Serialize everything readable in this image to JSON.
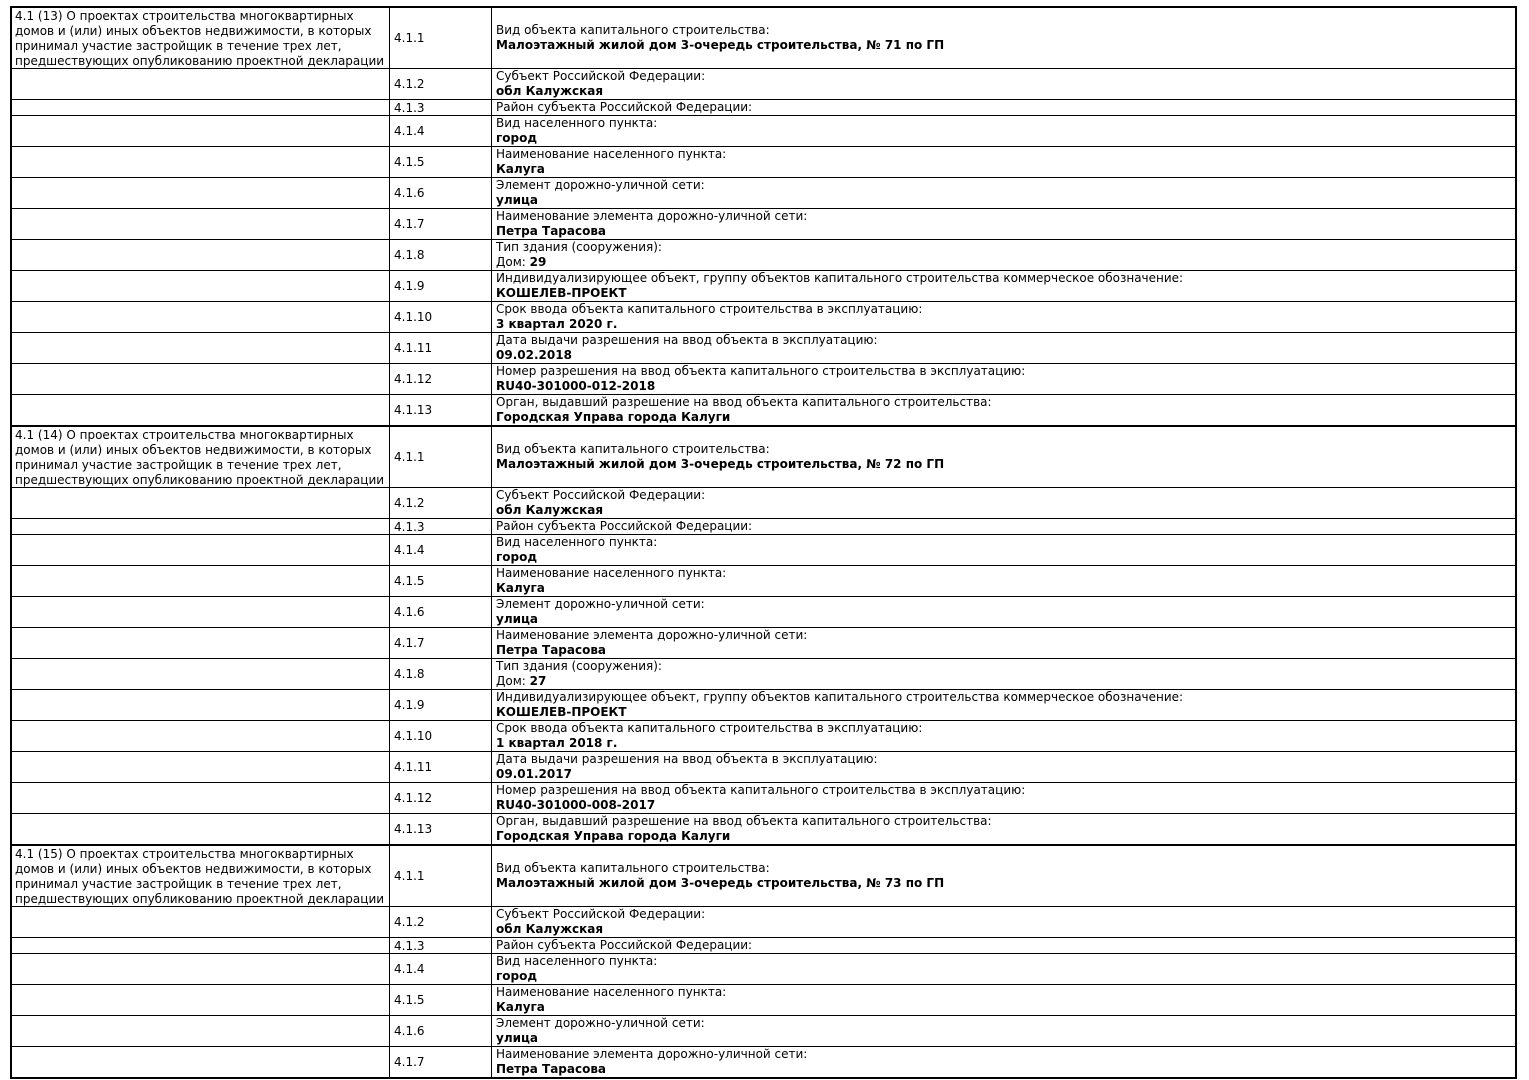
{
  "colors": {
    "border": "#000000",
    "text": "#000000",
    "page_background": "#ffffff"
  },
  "table": {
    "sections": [
      {
        "title": "4.1 (13) О проектах строительства многоквартирных домов и (или) иных объектов недвижимости, в которых принимал участие застройщик в течение трех лет, предшествующих опубликованию проектной декларации",
        "rows": [
          {
            "code": "4.1.1",
            "label": "Вид объекта капитального строительства:",
            "value": "Малоэтажный жилой дом 3-очередь строительства, № 71 по ГП"
          },
          {
            "code": "4.1.2",
            "label": "Субъект Российской Федерации:",
            "value": "обл Калужская"
          },
          {
            "code": "4.1.3",
            "label": "Район субъекта Российской Федерации:",
            "value": ""
          },
          {
            "code": "4.1.4",
            "label": "Вид населенного пункта:",
            "value": "город"
          },
          {
            "code": "4.1.5",
            "label": "Наименование населенного пункта:",
            "value": "Калуга"
          },
          {
            "code": "4.1.6",
            "label": "Элемент дорожно-уличной сети:",
            "value": "улица"
          },
          {
            "code": "4.1.7",
            "label": "Наименование элемента дорожно-уличной сети:",
            "value": "Петра Тарасова"
          },
          {
            "code": "4.1.8",
            "label": "Тип здания (сооружения):",
            "value_prefix": "Дом: ",
            "value": "29"
          },
          {
            "code": "4.1.9",
            "label": "Индивидуализирующее объект, группу объектов капитального строительства коммерческое обозначение:",
            "value": "КОШЕЛЕВ-ПРОЕКТ"
          },
          {
            "code": "4.1.10",
            "label": "Срок ввода объекта капитального строительства в эксплуатацию:",
            "value": "3 квартал 2020 г."
          },
          {
            "code": "4.1.11",
            "label": "Дата выдачи разрешения на ввод объекта в эксплуатацию:",
            "value": "09.02.2018"
          },
          {
            "code": "4.1.12",
            "label": "Номер разрешения на ввод объекта капитального строительства в эксплуатацию:",
            "value": "RU40-301000-012-2018"
          },
          {
            "code": "4.1.13",
            "label": "Орган, выдавший разрешение на ввод объекта капитального строительства:",
            "value": "Городская Управа города Калуги"
          }
        ]
      },
      {
        "title": "4.1 (14) О проектах строительства многоквартирных домов и (или) иных объектов недвижимости, в которых принимал участие застройщик в течение трех лет, предшествующих опубликованию проектной декларации",
        "rows": [
          {
            "code": "4.1.1",
            "label": "Вид объекта капитального строительства:",
            "value": "Малоэтажный жилой дом 3-очередь строительства, № 72 по ГП"
          },
          {
            "code": "4.1.2",
            "label": "Субъект Российской Федерации:",
            "value": "обл Калужская"
          },
          {
            "code": "4.1.3",
            "label": "Район субъекта Российской Федерации:",
            "value": ""
          },
          {
            "code": "4.1.4",
            "label": "Вид населенного пункта:",
            "value": "город"
          },
          {
            "code": "4.1.5",
            "label": "Наименование населенного пункта:",
            "value": "Калуга"
          },
          {
            "code": "4.1.6",
            "label": "Элемент дорожно-уличной сети:",
            "value": "улица"
          },
          {
            "code": "4.1.7",
            "label": "Наименование элемента дорожно-уличной сети:",
            "value": "Петра Тарасова"
          },
          {
            "code": "4.1.8",
            "label": "Тип здания (сооружения):",
            "value_prefix": "Дом: ",
            "value": "27"
          },
          {
            "code": "4.1.9",
            "label": "Индивидуализирующее объект, группу объектов капитального строительства коммерческое обозначение:",
            "value": "КОШЕЛЕВ-ПРОЕКТ"
          },
          {
            "code": "4.1.10",
            "label": "Срок ввода объекта капитального строительства в эксплуатацию:",
            "value": "1 квартал 2018 г."
          },
          {
            "code": "4.1.11",
            "label": "Дата выдачи разрешения на ввод объекта в эксплуатацию:",
            "value": "09.01.2017"
          },
          {
            "code": "4.1.12",
            "label": "Номер разрешения на ввод объекта капитального строительства в эксплуатацию:",
            "value": "RU40-301000-008-2017"
          },
          {
            "code": "4.1.13",
            "label": "Орган, выдавший разрешение на ввод объекта капитального строительства:",
            "value": "Городская Управа города Калуги"
          }
        ]
      },
      {
        "title": "4.1 (15) О проектах строительства многоквартирных домов и (или) иных объектов недвижимости, в которых принимал участие застройщик в течение трех лет, предшествующих опубликованию проектной декларации",
        "rows": [
          {
            "code": "4.1.1",
            "label": "Вид объекта капитального строительства:",
            "value": "Малоэтажный жилой дом 3-очередь строительства, № 73 по ГП"
          },
          {
            "code": "4.1.2",
            "label": "Субъект Российской Федерации:",
            "value": "обл Калужская"
          },
          {
            "code": "4.1.3",
            "label": "Район субъекта Российской Федерации:",
            "value": ""
          },
          {
            "code": "4.1.4",
            "label": "Вид населенного пункта:",
            "value": "город"
          },
          {
            "code": "4.1.5",
            "label": "Наименование населенного пункта:",
            "value": "Калуга"
          },
          {
            "code": "4.1.6",
            "label": "Элемент дорожно-уличной сети:",
            "value": "улица"
          },
          {
            "code": "4.1.7",
            "label": "Наименование элемента дорожно-уличной сети:",
            "value": "Петра Тарасова"
          }
        ]
      }
    ]
  }
}
